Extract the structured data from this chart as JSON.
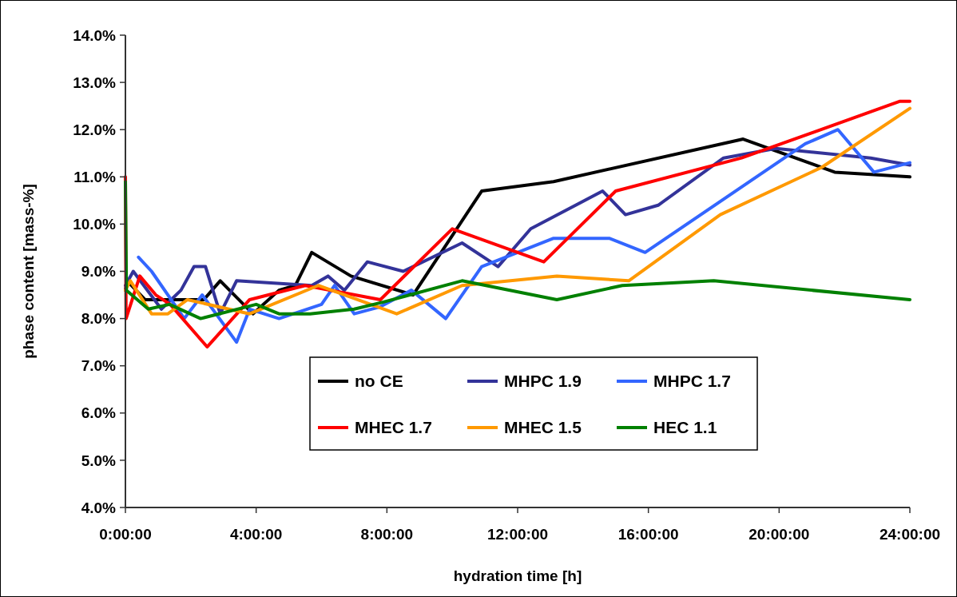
{
  "chart_data": {
    "type": "line",
    "xlabel": "hydration time [h]",
    "ylabel": "phase content [mass-%]",
    "xlim": [
      0,
      24
    ],
    "xticks": [
      {
        "value": 0,
        "label": "0:00:00"
      },
      {
        "value": 4,
        "label": "4:00:00"
      },
      {
        "value": 8,
        "label": "8:00:00"
      },
      {
        "value": 12,
        "label": "12:00:00"
      },
      {
        "value": 16,
        "label": "16:00:00"
      },
      {
        "value": 20,
        "label": "20:00:00"
      },
      {
        "value": 24,
        "label": "24:00:00"
      }
    ],
    "ylim": [
      4,
      14
    ],
    "yticks": [
      {
        "value": 4,
        "label": "4.0%"
      },
      {
        "value": 5,
        "label": "5.0%"
      },
      {
        "value": 6,
        "label": "6.0%"
      },
      {
        "value": 7,
        "label": "7.0%"
      },
      {
        "value": 8,
        "label": "8.0%"
      },
      {
        "value": 9,
        "label": "9.0%"
      },
      {
        "value": 10,
        "label": "10.0%"
      },
      {
        "value": 11,
        "label": "11.0%"
      },
      {
        "value": 12,
        "label": "12.0%"
      },
      {
        "value": 13,
        "label": "13.0%"
      },
      {
        "value": 14,
        "label": "14.0%"
      }
    ],
    "grid": false,
    "legend": "bottom",
    "marker": "none",
    "line_style": "solid",
    "series": [
      {
        "name": "no CE",
        "color": "#000000",
        "x": [
          0,
          0.05,
          0.6,
          2.4,
          2.9,
          3.9,
          4.7,
          5.2,
          5.7,
          6.9,
          8.8,
          10.9,
          13.1,
          18.9,
          21.7,
          24
        ],
        "values": [
          8.6,
          8.8,
          8.4,
          8.4,
          8.8,
          8.1,
          8.6,
          8.7,
          9.4,
          8.9,
          8.5,
          10.7,
          10.9,
          11.8,
          11.1,
          11.0
        ]
      },
      {
        "name": "MHPC 1.9",
        "color": "#333399",
        "x": [
          0,
          0.24,
          1.1,
          1.7,
          2.1,
          2.45,
          2.9,
          3.4,
          5.7,
          6.2,
          6.7,
          7.4,
          8.5,
          10.3,
          11.4,
          12.4,
          14.6,
          15.3,
          16.3,
          18.3,
          19.9,
          22.8,
          24
        ],
        "values": [
          8.7,
          9.0,
          8.2,
          8.6,
          9.1,
          9.1,
          8.1,
          8.8,
          8.7,
          8.9,
          8.6,
          9.2,
          9.0,
          9.6,
          9.1,
          9.9,
          10.7,
          10.2,
          10.4,
          11.4,
          11.6,
          11.4,
          11.25
        ]
      },
      {
        "name": "MHPC 1.7",
        "color": "#3366ff",
        "x": [
          0.4,
          0.8,
          1.8,
          2.35,
          3.4,
          3.8,
          4.7,
          6.0,
          6.4,
          7.0,
          7.8,
          8.75,
          9.8,
          10.9,
          13.1,
          14.8,
          15.9,
          20.8,
          21.8,
          22.9,
          24
        ],
        "values": [
          9.3,
          9.0,
          8.0,
          8.5,
          7.5,
          8.2,
          8.0,
          8.3,
          8.7,
          8.1,
          8.25,
          8.6,
          8.0,
          9.1,
          9.7,
          9.7,
          9.4,
          11.7,
          12.0,
          11.1,
          11.3
        ]
      },
      {
        "name": "MHEC 1.7",
        "color": "#ff0000",
        "x": [
          0,
          0.02,
          0.44,
          0.93,
          1.37,
          2.5,
          3.8,
          5.5,
          7.8,
          10.0,
          12.8,
          15.0,
          18.85,
          23.7,
          24
        ],
        "values": [
          11.0,
          8.0,
          8.9,
          8.5,
          8.3,
          7.4,
          8.4,
          8.7,
          8.4,
          9.9,
          9.2,
          10.7,
          11.4,
          12.6,
          12.6
        ]
      },
      {
        "name": "MHEC 1.5",
        "color": "#ff9900",
        "x": [
          0,
          0.15,
          0.8,
          1.3,
          1.9,
          3.8,
          5.9,
          8.3,
          10.3,
          13.2,
          15.4,
          18.2,
          21.3,
          24
        ],
        "values": [
          8.6,
          8.8,
          8.1,
          8.1,
          8.4,
          8.1,
          8.7,
          8.1,
          8.7,
          8.9,
          8.8,
          10.2,
          11.2,
          12.45
        ]
      },
      {
        "name": "HEC 1.1",
        "color": "#008000",
        "x": [
          0,
          0.03,
          0.7,
          1.35,
          2.3,
          4.0,
          4.7,
          5.65,
          7.0,
          7.9,
          10.3,
          13.2,
          15.2,
          18.0,
          24
        ],
        "values": [
          10.9,
          8.6,
          8.2,
          8.3,
          8.0,
          8.3,
          8.1,
          8.1,
          8.2,
          8.35,
          8.8,
          8.4,
          8.7,
          8.8,
          8.4
        ]
      }
    ]
  }
}
